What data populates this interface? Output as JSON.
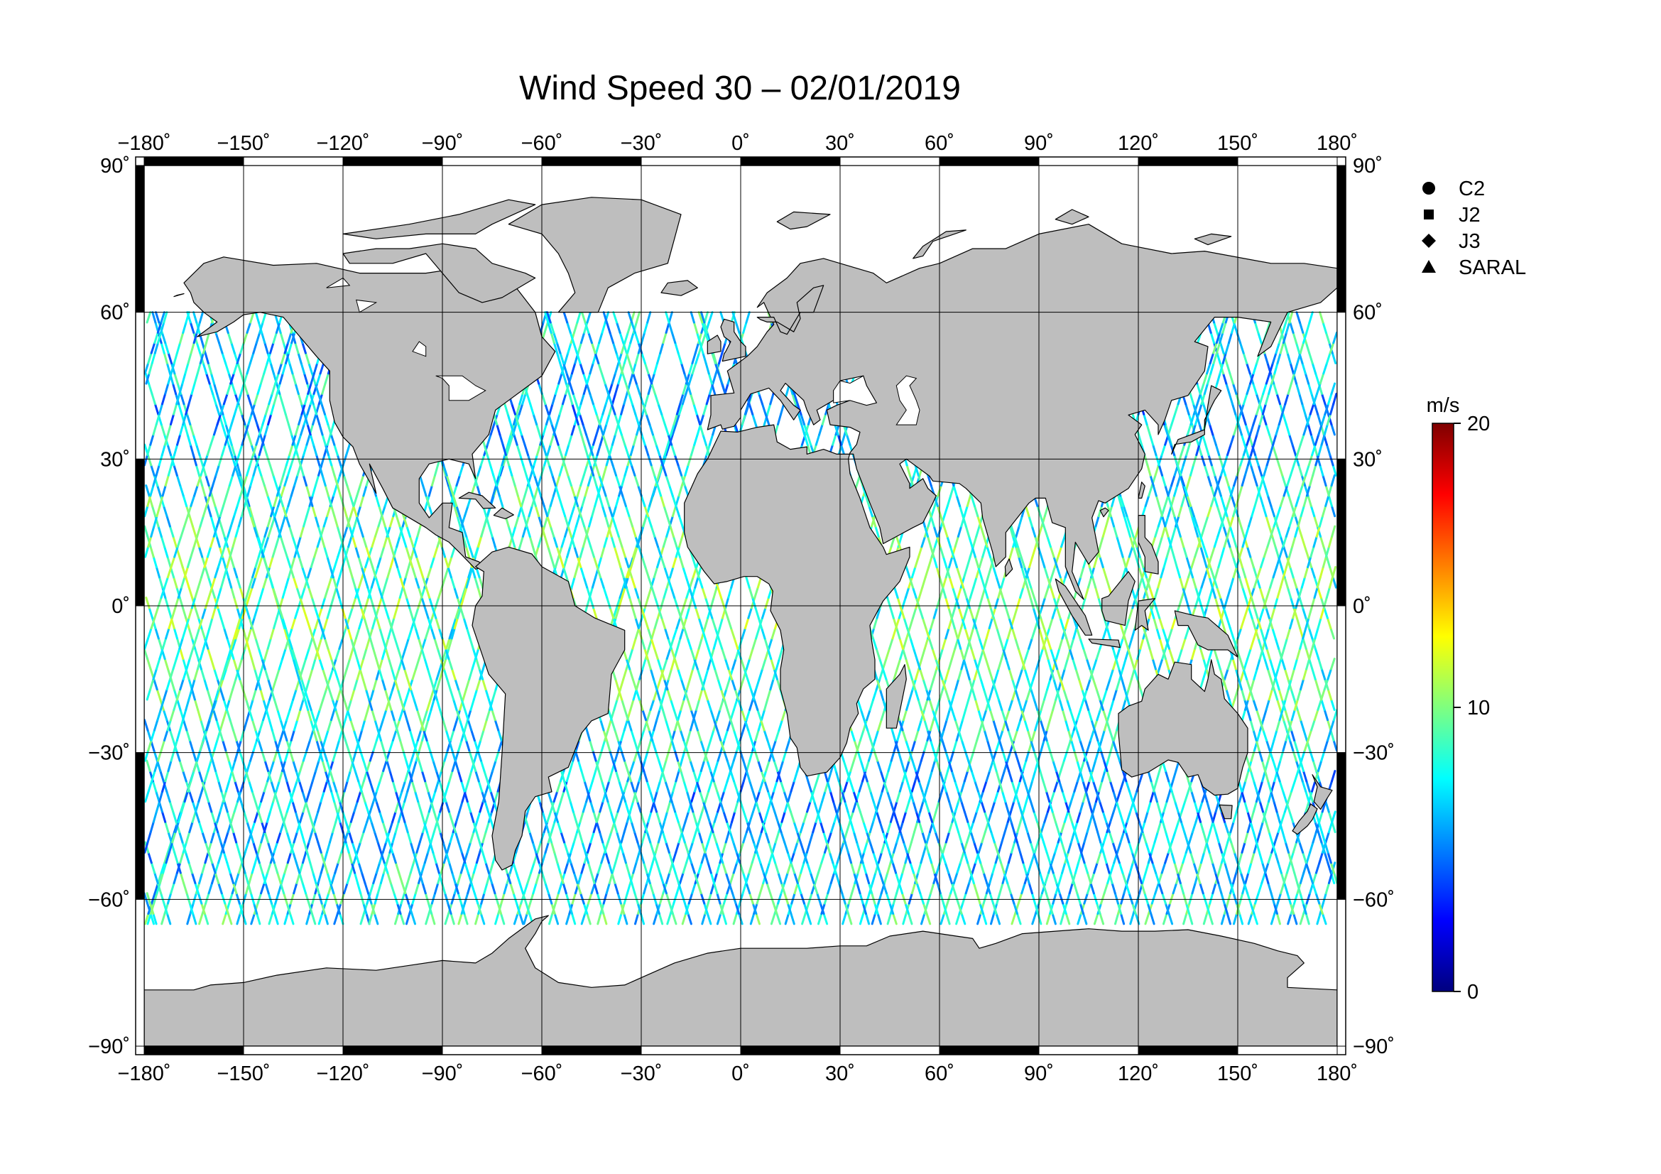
{
  "title": "Wind Speed 30 – 02/01/2019",
  "map": {
    "projection": "equirectangular",
    "lon_range": [
      -180,
      180
    ],
    "lat_range": [
      -90,
      90
    ],
    "land_color": "#bebebe",
    "ocean_color": "#ffffff",
    "grid_step_deg": 30
  },
  "axes": {
    "lon_ticks": [
      {
        "value": -180,
        "label": "−180˚"
      },
      {
        "value": -150,
        "label": "−150˚"
      },
      {
        "value": -120,
        "label": "−120˚"
      },
      {
        "value": -90,
        "label": "−90˚"
      },
      {
        "value": -60,
        "label": "−60˚"
      },
      {
        "value": -30,
        "label": "−30˚"
      },
      {
        "value": 0,
        "label": "0˚"
      },
      {
        "value": 30,
        "label": "30˚"
      },
      {
        "value": 60,
        "label": "60˚"
      },
      {
        "value": 90,
        "label": "90˚"
      },
      {
        "value": 120,
        "label": "120˚"
      },
      {
        "value": 150,
        "label": "150˚"
      },
      {
        "value": 180,
        "label": "180˚"
      }
    ],
    "lat_ticks": [
      {
        "value": 90,
        "label": "90˚"
      },
      {
        "value": 60,
        "label": "60˚"
      },
      {
        "value": 30,
        "label": "30˚"
      },
      {
        "value": 0,
        "label": "0˚"
      },
      {
        "value": -30,
        "label": "−30˚"
      },
      {
        "value": -60,
        "label": "−60˚"
      },
      {
        "value": -90,
        "label": "−90˚"
      }
    ]
  },
  "legend": [
    {
      "label": "C2",
      "symbol": "circle"
    },
    {
      "label": "J2",
      "symbol": "square"
    },
    {
      "label": "J3",
      "symbol": "diamond"
    },
    {
      "label": "SARAL",
      "symbol": "triangle"
    }
  ],
  "colorbar": {
    "unit": "m/s",
    "min": 0,
    "max": 20,
    "tick_labels": [
      "20",
      "10",
      "0"
    ],
    "tick_values": [
      20,
      10,
      0
    ],
    "colors": [
      "#00007f",
      "#0000ff",
      "#007fff",
      "#00ffff",
      "#7fff7f",
      "#ffff00",
      "#ff7f00",
      "#ff0000",
      "#7f0000"
    ]
  },
  "tracks": {
    "lat_limit_north": 60,
    "lat_limit_south": -65,
    "description_values": "along-track wind speed samples in m/s"
  }
}
